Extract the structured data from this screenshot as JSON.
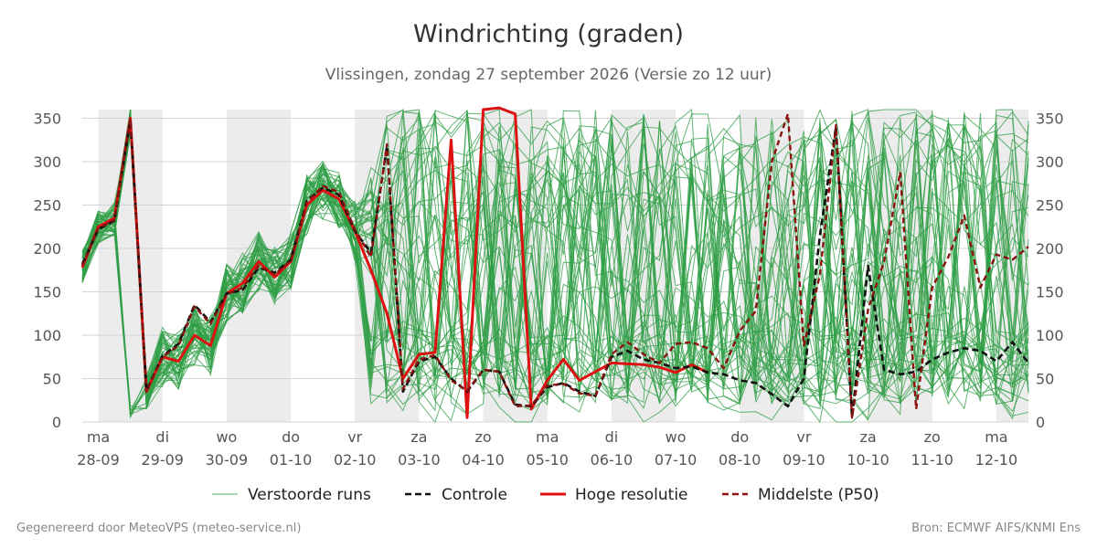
{
  "title": "Windrichting (graden)",
  "subtitle": "Vlissingen, zondag 27 september 2026 (Versie zo 12 uur)",
  "footer_left": "Gegenereerd door MeteoVPS (meteo-service.nl)",
  "footer_right": "Bron: ECMWF AIFS/KNMI Ens",
  "colors": {
    "ensemble": "#2e9e44",
    "control": "#111111",
    "hires": "#dd1111",
    "median": "#8b1010",
    "weekend_band": "#ececec",
    "grid": "#d4d4d4"
  },
  "chart_data": {
    "type": "line",
    "title": "Windrichting (graden)",
    "ylim": [
      0,
      360
    ],
    "yticks": [
      0,
      50,
      100,
      150,
      200,
      250,
      300,
      350
    ],
    "xlim": [
      -0.25,
      14.5
    ],
    "x_unit": "days since ma 28-09",
    "x_ticks": [
      {
        "day": "ma",
        "date": "28-09"
      },
      {
        "day": "di",
        "date": "29-09"
      },
      {
        "day": "wo",
        "date": "30-09"
      },
      {
        "day": "do",
        "date": "01-10"
      },
      {
        "day": "vr",
        "date": "02-10"
      },
      {
        "day": "za",
        "date": "03-10"
      },
      {
        "day": "zo",
        "date": "04-10"
      },
      {
        "day": "ma",
        "date": "05-10"
      },
      {
        "day": "di",
        "date": "06-10"
      },
      {
        "day": "wo",
        "date": "07-10"
      },
      {
        "day": "do",
        "date": "08-10"
      },
      {
        "day": "vr",
        "date": "09-10"
      },
      {
        "day": "za",
        "date": "10-10"
      },
      {
        "day": "zo",
        "date": "11-10"
      },
      {
        "day": "ma",
        "date": "12-10"
      }
    ],
    "shaded_bands": [
      [
        0,
        1
      ],
      [
        2,
        3
      ],
      [
        4,
        5
      ],
      [
        6,
        7
      ],
      [
        8,
        9
      ],
      [
        10,
        11
      ],
      [
        12,
        13
      ],
      [
        14,
        14.5
      ]
    ],
    "grid": true,
    "legend_position": "bottom",
    "legend": [
      {
        "key": "ensemble",
        "label": "Verstoorde runs",
        "style": "thin-solid"
      },
      {
        "key": "control",
        "label": "Controle",
        "style": "dashed"
      },
      {
        "key": "hires",
        "label": "Hoge resolutie",
        "style": "thick-solid"
      },
      {
        "key": "median",
        "label": "Middelste (P50)",
        "style": "dashed"
      }
    ],
    "series": [
      {
        "name": "Hoge resolutie",
        "x": [
          -0.25,
          0,
          0.25,
          0.5,
          0.75,
          1,
          1.25,
          1.5,
          1.75,
          2,
          2.25,
          2.5,
          2.75,
          3,
          3.25,
          3.5,
          3.75,
          4,
          4.25,
          4.5,
          4.75,
          5,
          5.25,
          5.5,
          5.75,
          6,
          6.25,
          6.5,
          6.75,
          7,
          7.25,
          7.5,
          7.75,
          8,
          8.25,
          8.5,
          8.75,
          9,
          9.25,
          9.5
        ],
        "values": [
          178,
          225,
          235,
          350,
          35,
          75,
          70,
          100,
          88,
          148,
          160,
          185,
          167,
          185,
          250,
          267,
          257,
          220,
          175,
          125,
          50,
          78,
          80,
          325,
          5,
          360,
          362,
          355,
          15,
          48,
          72,
          48,
          58,
          68,
          67,
          66,
          63,
          57,
          66,
          57
        ]
      },
      {
        "name": "Controle",
        "x": [
          -0.25,
          0,
          0.25,
          0.5,
          0.75,
          1,
          1.25,
          1.5,
          1.75,
          2,
          2.25,
          2.5,
          2.75,
          3,
          3.25,
          3.5,
          3.75,
          4,
          4.25,
          4.5,
          4.75,
          5,
          5.25,
          5.5,
          5.75,
          6,
          6.25,
          6.5,
          6.75,
          7,
          7.25,
          7.5,
          7.75,
          8,
          8.25,
          8.5,
          8.75,
          9,
          9.25,
          9.5,
          9.75,
          10,
          10.25,
          10.5,
          10.75,
          11,
          11.25,
          11.5,
          11.75,
          12,
          12.25,
          12.5,
          12.75,
          13,
          13.25,
          13.5,
          13.75,
          14,
          14.25,
          14.5
        ],
        "values": [
          182,
          222,
          232,
          348,
          36,
          76,
          90,
          135,
          115,
          148,
          152,
          178,
          172,
          187,
          255,
          270,
          262,
          220,
          195,
          318,
          35,
          70,
          75,
          50,
          35,
          60,
          58,
          20,
          18,
          40,
          45,
          35,
          30,
          75,
          82,
          72,
          68,
          62,
          64,
          57,
          55,
          48,
          45,
          32,
          18,
          50,
          215,
          340,
          5,
          180,
          60,
          55,
          58,
          72,
          80,
          85,
          82,
          70,
          92,
          68
        ]
      },
      {
        "name": "Middelste (P50)",
        "x": [
          -0.25,
          0,
          0.25,
          0.5,
          0.75,
          1,
          1.25,
          1.5,
          1.75,
          2,
          2.25,
          2.5,
          2.75,
          3,
          3.25,
          3.5,
          3.75,
          4,
          4.25,
          4.5,
          4.75,
          5,
          5.25,
          5.5,
          5.75,
          6,
          6.25,
          6.5,
          6.75,
          7,
          7.25,
          7.5,
          7.75,
          8,
          8.25,
          8.5,
          8.75,
          9,
          9.25,
          9.5,
          9.75,
          10,
          10.25,
          10.5,
          10.75,
          11,
          11.25,
          11.5,
          11.75,
          12,
          12.25,
          12.5,
          12.75,
          13,
          13.25,
          13.5,
          13.75,
          14,
          14.25,
          14.5
        ],
        "values": [
          180,
          223,
          233,
          349,
          35,
          75,
          88,
          133,
          113,
          147,
          155,
          180,
          170,
          186,
          253,
          272,
          265,
          222,
          190,
          320,
          38,
          72,
          77,
          48,
          36,
          60,
          58,
          18,
          19,
          42,
          44,
          33,
          30,
          78,
          92,
          78,
          68,
          90,
          92,
          85,
          62,
          105,
          128,
          300,
          355,
          88,
          170,
          342,
          5,
          130,
          185,
          288,
          15,
          155,
          190,
          238,
          155,
          193,
          187,
          202
        ]
      }
    ],
    "ensemble_members": 50
  }
}
